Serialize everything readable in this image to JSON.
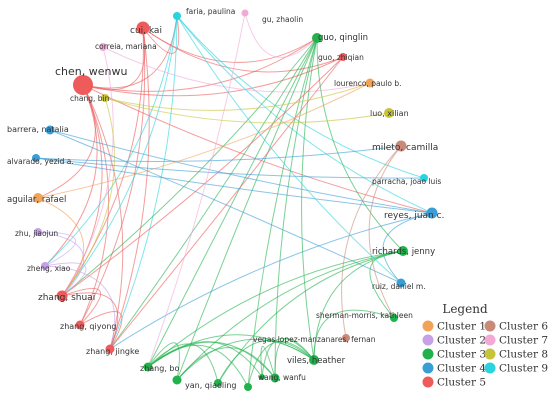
{
  "cluster_colors": {
    "1": "#f2a35a",
    "2": "#c7a0e8",
    "3": "#22b24c",
    "4": "#3a9ed6",
    "5": "#ef5a5a",
    "6": "#c98a7a",
    "7": "#f3a9d6",
    "8": "#c8c43a",
    "9": "#29d4e0"
  },
  "nodes": [
    {
      "id": "chen",
      "label": "chen, wenwu",
      "cluster": 5
    },
    {
      "id": "cui",
      "label": "cui, kai",
      "cluster": 5
    },
    {
      "id": "correia",
      "label": "correia, mariana",
      "cluster": 7
    },
    {
      "id": "faria",
      "label": "faria, paulina",
      "cluster": 9
    },
    {
      "id": "gu",
      "label": "gu, zhaolin",
      "cluster": 7
    },
    {
      "id": "guo_q",
      "label": "guo, qinglin",
      "cluster": 3
    },
    {
      "id": "guo_z",
      "label": "guo, zhiqian",
      "cluster": 5
    },
    {
      "id": "lourenco",
      "label": "lourenco, paulo b.",
      "cluster": 1
    },
    {
      "id": "luo",
      "label": "luo, xilian",
      "cluster": 8
    },
    {
      "id": "chang",
      "label": "chang, bin",
      "cluster": 8
    },
    {
      "id": "barrera",
      "label": "barrera, natalia",
      "cluster": 4
    },
    {
      "id": "alvarado",
      "label": "alvarado, yezid a.",
      "cluster": 4
    },
    {
      "id": "mileto",
      "label": "mileto, camilla",
      "cluster": 6
    },
    {
      "id": "parracha",
      "label": "parracha, joao luis",
      "cluster": 9
    },
    {
      "id": "aguilar",
      "label": "aguilar, rafael",
      "cluster": 1
    },
    {
      "id": "reyes",
      "label": "reyes, juan c.",
      "cluster": 4
    },
    {
      "id": "zhu",
      "label": "zhu, jiaojun",
      "cluster": 2
    },
    {
      "id": "richards",
      "label": "richards, jenny",
      "cluster": 3
    },
    {
      "id": "zheng",
      "label": "zheng, xiao",
      "cluster": 2
    },
    {
      "id": "ruiz",
      "label": "ruiz, daniel m.",
      "cluster": 4
    },
    {
      "id": "zhang_s",
      "label": "zhang, shuai",
      "cluster": 5
    },
    {
      "id": "sherman",
      "label": "sherman-morris, kathleen",
      "cluster": 3
    },
    {
      "id": "zhang_q",
      "label": "zhang, qiyong",
      "cluster": 5
    },
    {
      "id": "vegas",
      "label": "vegas lopez-manzanares, fernan",
      "cluster": 6
    },
    {
      "id": "zhang_j",
      "label": "zhang, jingke",
      "cluster": 5
    },
    {
      "id": "viles",
      "label": "viles, heather",
      "cluster": 3
    },
    {
      "id": "zhang_b",
      "label": "zhang, bo",
      "cluster": 3
    },
    {
      "id": "wang",
      "label": "wang, wanfu",
      "cluster": 3
    },
    {
      "id": "yan",
      "label": "yan, qiaoling",
      "cluster": 3
    },
    {
      "id": "n_small1",
      "label": "",
      "cluster": 3
    },
    {
      "id": "n_small2",
      "label": "",
      "cluster": 3
    },
    {
      "id": "n_small3",
      "label": "",
      "cluster": 3
    }
  ],
  "edges": [
    [
      "chen",
      "cui"
    ],
    [
      "chen",
      "zhang_s"
    ],
    [
      "chen",
      "zhang_q"
    ],
    [
      "chen",
      "zhang_j"
    ],
    [
      "chen",
      "guo_z"
    ],
    [
      "chen",
      "faria"
    ],
    [
      "chen",
      "guo_q"
    ],
    [
      "chen",
      "reyes"
    ],
    [
      "chen",
      "zheng"
    ],
    [
      "chen",
      "aguilar"
    ],
    [
      "cui",
      "zhang_s"
    ],
    [
      "cui",
      "zhang_j"
    ],
    [
      "cui",
      "zhang_q"
    ],
    [
      "cui",
      "guo_z"
    ],
    [
      "cui",
      "faria"
    ],
    [
      "cui",
      "guo_q"
    ],
    [
      "faria",
      "zhang_s"
    ],
    [
      "faria",
      "zhang_j"
    ],
    [
      "faria",
      "zheng"
    ],
    [
      "faria",
      "reyes"
    ],
    [
      "faria",
      "parracha"
    ],
    [
      "correia",
      "lourenco"
    ],
    [
      "correia",
      "zhang_s"
    ],
    [
      "guo_q",
      "zhang_b"
    ],
    [
      "guo_q",
      "viles"
    ],
    [
      "guo_q",
      "yan"
    ],
    [
      "guo_q",
      "richards"
    ],
    [
      "guo_q",
      "wang"
    ],
    [
      "guo_q",
      "zhang_s"
    ],
    [
      "guo_q",
      "zhang_j"
    ],
    [
      "guo_q",
      "n_small2"
    ],
    [
      "guo_z",
      "zhang_s"
    ],
    [
      "guo_z",
      "zhang_j"
    ],
    [
      "chang",
      "luo"
    ],
    [
      "chang",
      "lourenco"
    ],
    [
      "chang",
      "zhang_s"
    ],
    [
      "barrera",
      "reyes"
    ],
    [
      "barrera",
      "ruiz"
    ],
    [
      "alvarado",
      "reyes"
    ],
    [
      "alvarado",
      "parracha"
    ],
    [
      "alvarado",
      "mileto"
    ],
    [
      "aguilar",
      "lourenco"
    ],
    [
      "aguilar",
      "zhang_s"
    ],
    [
      "mileto",
      "vegas"
    ],
    [
      "mileto",
      "sherman"
    ],
    [
      "reyes",
      "ruiz"
    ],
    [
      "reyes",
      "zhang_j"
    ],
    [
      "richards",
      "zhang_b"
    ],
    [
      "richards",
      "viles"
    ],
    [
      "richards",
      "yan"
    ],
    [
      "richards",
      "sherman"
    ],
    [
      "richards",
      "n_small1"
    ],
    [
      "viles",
      "zhang_b"
    ],
    [
      "viles",
      "yan"
    ],
    [
      "viles",
      "wang"
    ],
    [
      "viles",
      "sherman"
    ],
    [
      "viles",
      "n_small1"
    ],
    [
      "viles",
      "n_small2"
    ],
    [
      "viles",
      "n_small3"
    ],
    [
      "zhang_b",
      "yan"
    ],
    [
      "zhang_b",
      "wang"
    ],
    [
      "zhang_b",
      "n_small1"
    ],
    [
      "zhang_b",
      "n_small2"
    ],
    [
      "zhang_b",
      "n_small3"
    ],
    [
      "yan",
      "wang"
    ],
    [
      "wang",
      "n_small3"
    ],
    [
      "zhu",
      "zhang_s"
    ],
    [
      "zhu",
      "zheng"
    ],
    [
      "zheng",
      "zhang_s"
    ],
    [
      "zheng",
      "zhang_j"
    ],
    [
      "zhang_s",
      "zhang_q"
    ],
    [
      "zhang_s",
      "zhang_j"
    ],
    [
      "zhang_q",
      "zhang_j"
    ],
    [
      "gu",
      "guo_q"
    ],
    [
      "gu",
      "zhang_b"
    ],
    [
      "faria",
      "ruiz"
    ]
  ],
  "legend": {
    "title": "Legend",
    "items": [
      {
        "label": "Cluster 1",
        "cluster": 1
      },
      {
        "label": "Cluster 6",
        "cluster": 6
      },
      {
        "label": "Cluster 2",
        "cluster": 2
      },
      {
        "label": "Cluster 7",
        "cluster": 7
      },
      {
        "label": "Cluster 3",
        "cluster": 3
      },
      {
        "label": "Cluster 8",
        "cluster": 8
      },
      {
        "label": "Cluster 4",
        "cluster": 4
      },
      {
        "label": "Cluster 9",
        "cluster": 9
      },
      {
        "label": "Cluster 5",
        "cluster": 5
      }
    ]
  }
}
